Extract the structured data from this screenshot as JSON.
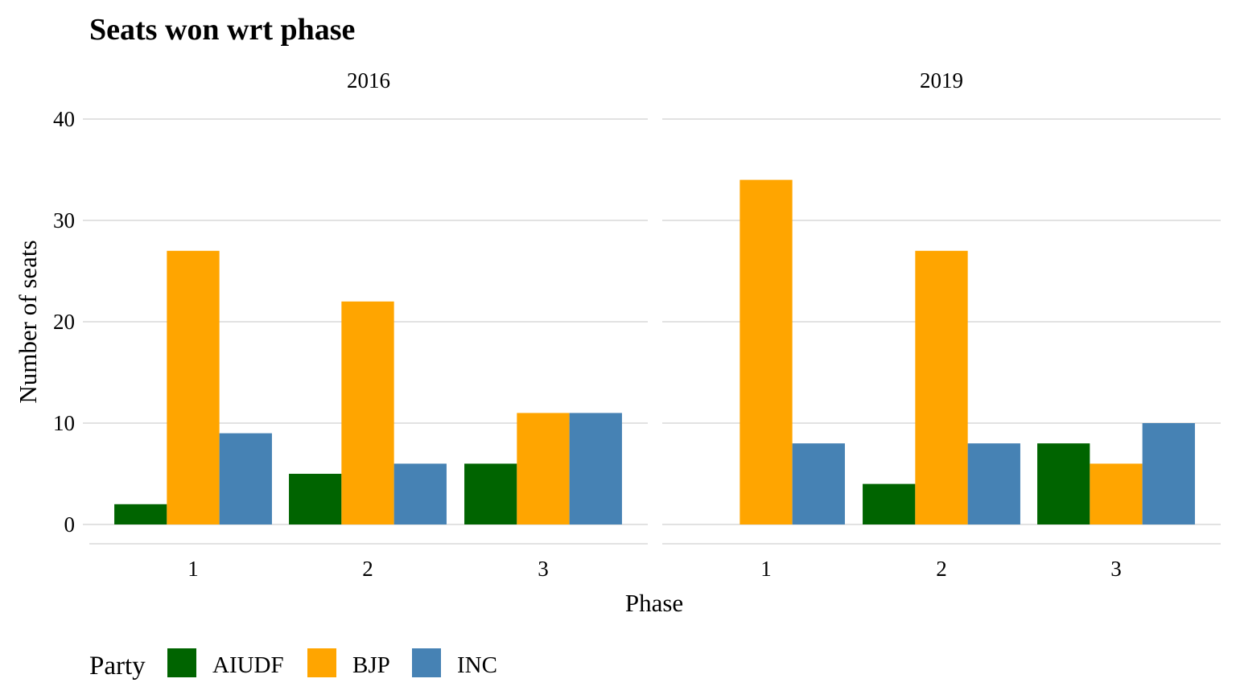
{
  "chart_data": {
    "type": "bar",
    "title": "Seats won wrt phase",
    "xlabel": "Phase",
    "ylabel": "Number of seats",
    "ylim": [
      0,
      40
    ],
    "yticks": [
      0,
      10,
      20,
      30,
      40
    ],
    "categories": [
      "1",
      "2",
      "3"
    ],
    "grid": true,
    "legend": {
      "title": "Party",
      "position": "bottom-left"
    },
    "colors": {
      "AIUDF": "#006400",
      "BJP": "#FFA500",
      "INC": "#4682B4"
    },
    "panels": [
      {
        "label": "2016",
        "series": [
          {
            "name": "AIUDF",
            "values": [
              2,
              5,
              6
            ]
          },
          {
            "name": "BJP",
            "values": [
              27,
              22,
              11
            ]
          },
          {
            "name": "INC",
            "values": [
              9,
              6,
              11
            ]
          }
        ]
      },
      {
        "label": "2019",
        "series": [
          {
            "name": "AIUDF",
            "values": [
              0,
              4,
              8
            ]
          },
          {
            "name": "BJP",
            "values": [
              34,
              27,
              6
            ]
          },
          {
            "name": "INC",
            "values": [
              8,
              8,
              10
            ]
          }
        ]
      }
    ]
  }
}
